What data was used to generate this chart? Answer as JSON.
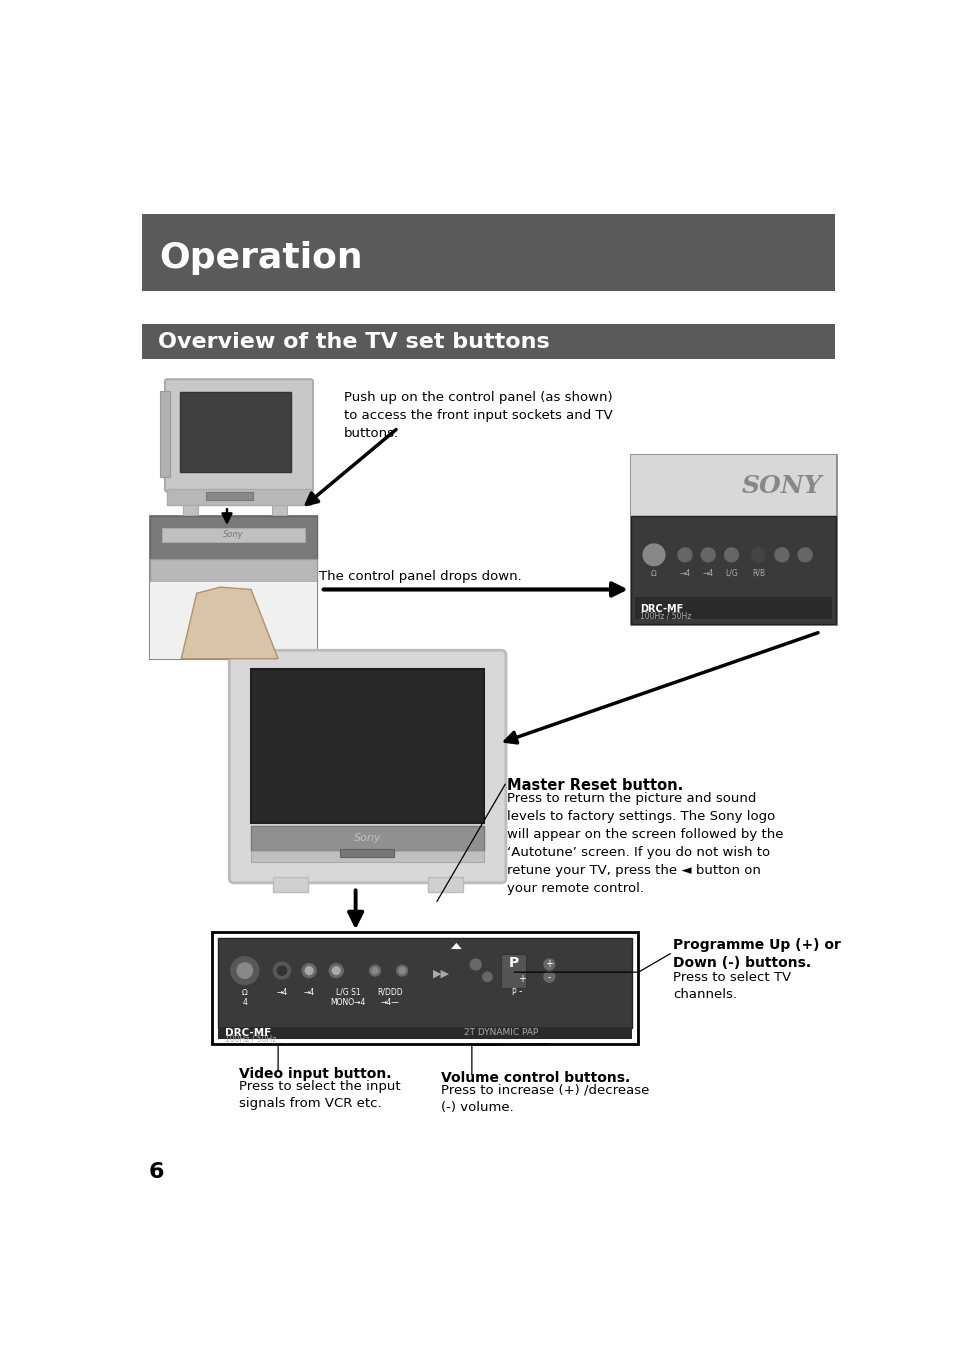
{
  "bg_color": "#ffffff",
  "header_bg": "#5a5a5a",
  "header_text": "Operation",
  "header_text_color": "#ffffff",
  "subheader_bg": "#5a5a5a",
  "subheader_text": "Overview of the TV set buttons",
  "subheader_text_color": "#ffffff",
  "page_number": "6",
  "caption1": "Push up on the control panel (as shown)\nto access the front input sockets and TV\nbuttons.",
  "caption2": "The control panel drops down.",
  "master_reset_title": "Master Reset button.",
  "master_reset_body": "Press to return the picture and sound\nlevels to factory settings. The Sony logo\nwill appear on the screen followed by the\n‘Autotune’ screen. If you do not wish to\nretune your TV, press the ◄ button on\nyour remote control.",
  "prog_title": "Programme Up (+) or\nDown (-) buttons.",
  "prog_body": "Press to select TV\nchannels.",
  "video_title": "Video input button.",
  "video_body": "Press to select the input\nsignals from VCR etc.",
  "volume_title": "Volume control buttons.",
  "volume_body": "Press to increase (+) /decrease\n(-) volume."
}
